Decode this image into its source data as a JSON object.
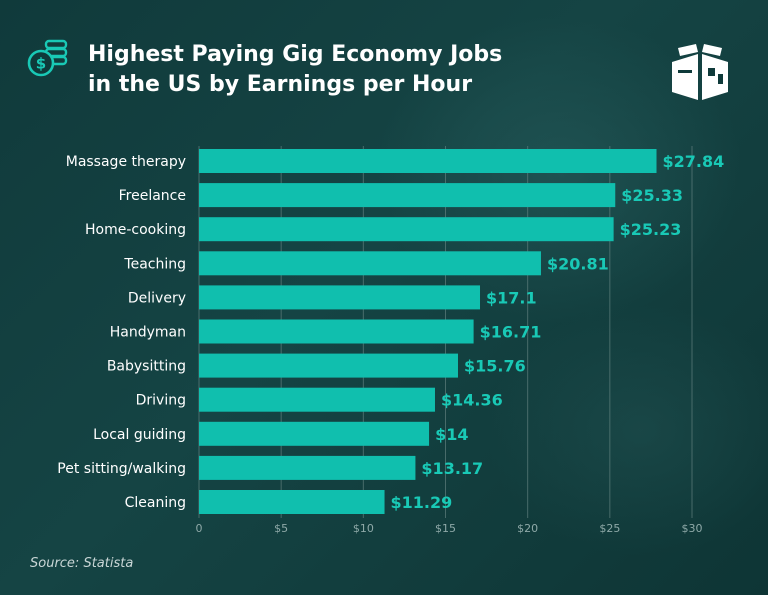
{
  "header": {
    "title_line1": "Highest Paying Gig Economy Jobs",
    "title_line2": "in the US by Earnings per Hour",
    "icon": "dollar-coins-icon",
    "logo": "box-logo-icon"
  },
  "source": "Source: Statista",
  "colors": {
    "bar": "#10bfae",
    "value_label": "#19c9b6",
    "category_label": "#ffffff",
    "tick_label": "#8fa9a8",
    "gridline": "#5f7f7e",
    "title": "#ffffff"
  },
  "chart_data": {
    "type": "bar",
    "orientation": "horizontal",
    "title": "Highest Paying Gig Economy Jobs in the US by Earnings per Hour",
    "categories": [
      "Massage therapy",
      "Freelance",
      "Home-cooking",
      "Teaching",
      "Delivery",
      "Handyman",
      "Babysitting",
      "Driving",
      "Local guiding",
      "Pet sitting/walking",
      "Cleaning"
    ],
    "values": [
      27.84,
      25.33,
      25.23,
      20.81,
      17.1,
      16.71,
      15.76,
      14.36,
      14,
      13.17,
      11.29
    ],
    "value_labels": [
      "$27.84",
      "$25.33",
      "$25.23",
      "$20.81",
      "$17.1",
      "$16.71",
      "$15.76",
      "$14.36",
      "$14",
      "$13.17",
      "$11.29"
    ],
    "xlim": [
      0,
      30
    ],
    "x_ticks": [
      0,
      5,
      10,
      15,
      20,
      25,
      30
    ],
    "x_tick_labels": [
      "0",
      "$5",
      "$10",
      "$15",
      "$20",
      "$25",
      "$30"
    ],
    "xlabel": "",
    "ylabel": "",
    "grid": true,
    "legend": "none"
  }
}
